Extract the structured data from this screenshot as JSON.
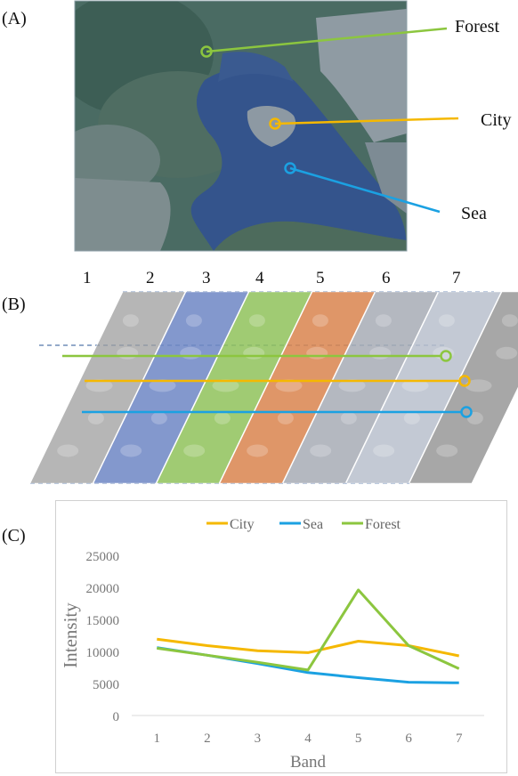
{
  "panel_labels": {
    "a": "(A)",
    "b": "(B)",
    "c": "(C)"
  },
  "satellite": {
    "labels": [
      {
        "key": "forest",
        "text": "Forest",
        "color": "#8cc63f"
      },
      {
        "key": "city",
        "text": "City",
        "color": "#f5b800"
      },
      {
        "key": "sea",
        "text": "Sea",
        "color": "#1ba1e2"
      }
    ]
  },
  "bands": {
    "numbers": [
      "1",
      "2",
      "3",
      "4",
      "5",
      "6",
      "7"
    ],
    "tints": [
      "#9e9e9e",
      "#6d86c4",
      "#8fc25a",
      "#d9844e",
      "#a7abb5",
      "#b9c0cc",
      "#8a8a8a"
    ],
    "line_colors": {
      "forest": "#8cc63f",
      "city": "#f5b800",
      "sea": "#1ba1e2"
    }
  },
  "chart_data": {
    "type": "line",
    "categories": [
      "1",
      "2",
      "3",
      "4",
      "5",
      "6",
      "7"
    ],
    "series": [
      {
        "name": "City",
        "color": "#f5b800",
        "values": [
          11900,
          10900,
          10100,
          9800,
          11600,
          10900,
          9300
        ]
      },
      {
        "name": "Sea",
        "color": "#1ba1e2",
        "values": [
          10600,
          9400,
          8100,
          6700,
          5900,
          5200,
          5100
        ]
      },
      {
        "name": "Forest",
        "color": "#8cc63f",
        "values": [
          10500,
          9400,
          8300,
          7100,
          19600,
          10900,
          7300
        ]
      }
    ],
    "xlabel": "Band",
    "ylabel": "Intensity",
    "ylim": [
      0,
      25000
    ],
    "yticks": [
      "0",
      "5000",
      "10000",
      "15000",
      "20000",
      "25000"
    ],
    "legend_position": "top-center",
    "grid": false
  }
}
